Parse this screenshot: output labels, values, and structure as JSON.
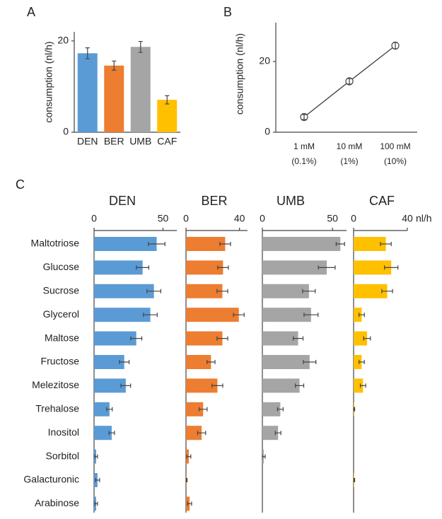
{
  "chart_data": [
    {
      "type": "bar",
      "panel": "A",
      "y_label": "consumption (nl/h)",
      "categories": [
        "DEN",
        "BER",
        "UMB",
        "CAF"
      ],
      "values": [
        17.3,
        14.6,
        18.7,
        7.1
      ],
      "errors": [
        1.2,
        1.0,
        1.2,
        0.9
      ],
      "colors": [
        "#5b9bd5",
        "#ed7d31",
        "#a5a5a5",
        "#ffc000"
      ],
      "ylim": [
        0,
        22
      ],
      "yticks": [
        0,
        20
      ]
    },
    {
      "type": "line",
      "panel": "B",
      "y_label": "consumption (nl/h)",
      "categories": [
        "1 mM",
        "10 mM",
        "100 mM"
      ],
      "sublabels": [
        "(0.1%)",
        "(1%)",
        "(10%)"
      ],
      "values": [
        4.3,
        14.4,
        24.5
      ],
      "errors": [
        0.7,
        0.8,
        0.9
      ],
      "color": "#444",
      "ylim": [
        0,
        27
      ],
      "yticks": [
        0,
        20
      ]
    },
    {
      "type": "barh",
      "panel": "C",
      "unit": "nl/h",
      "categories": [
        "Maltotriose",
        "Glucose",
        "Sucrose",
        "Glycerol",
        "Maltose",
        "Fructose",
        "Melezitose",
        "Trehalose",
        "Inositol",
        "Sorbitol",
        "Galacturonic",
        "Arabinose"
      ],
      "series": [
        {
          "name": "DEN",
          "color": "#5b9bd5",
          "xlim": [
            0,
            60
          ],
          "xticks": [
            0,
            50
          ],
          "values": [
            45.4,
            35.2,
            43.4,
            40.8,
            30.6,
            21.9,
            23,
            11.2,
            12.8,
            1.5,
            2.5,
            1.5
          ],
          "errors": [
            6,
            4.5,
            5,
            5,
            4,
            3.5,
            3.5,
            2,
            2,
            1,
            1.5,
            1
          ]
        },
        {
          "name": "BER",
          "color": "#ed7d31",
          "xlim": [
            0,
            46
          ],
          "xticks": [
            0,
            40
          ],
          "values": [
            29.3,
            27.7,
            27.2,
            39.5,
            27.2,
            18.7,
            23.5,
            12.8,
            11.7,
            2.1,
            0.5,
            2.7
          ],
          "errors": [
            4,
            4,
            4,
            4,
            4,
            3,
            4,
            3,
            3,
            1.5,
            0.3,
            1.5
          ]
        },
        {
          "name": "UMB",
          "color": "#a5a5a5",
          "xlim": [
            0,
            60
          ],
          "xticks": [
            0,
            50
          ],
          "values": [
            55.6,
            45.9,
            33.2,
            34.7,
            25.5,
            33.7,
            26.5,
            12.8,
            11.2,
            1,
            null,
            null
          ],
          "errors": [
            3,
            6,
            4.5,
            5,
            3.5,
            4.5,
            3,
            2,
            2,
            1,
            null,
            null
          ]
        },
        {
          "name": "CAF",
          "color": "#ffc000",
          "xlim": [
            0,
            40
          ],
          "xticks": [
            0,
            40
          ],
          "values": [
            24,
            28,
            25,
            6,
            10,
            6,
            7,
            0.5,
            null,
            null,
            0.5,
            null
          ],
          "errors": [
            4,
            5,
            4,
            2,
            2.5,
            2,
            2,
            0.3,
            null,
            null,
            0.3,
            null
          ]
        }
      ]
    }
  ]
}
